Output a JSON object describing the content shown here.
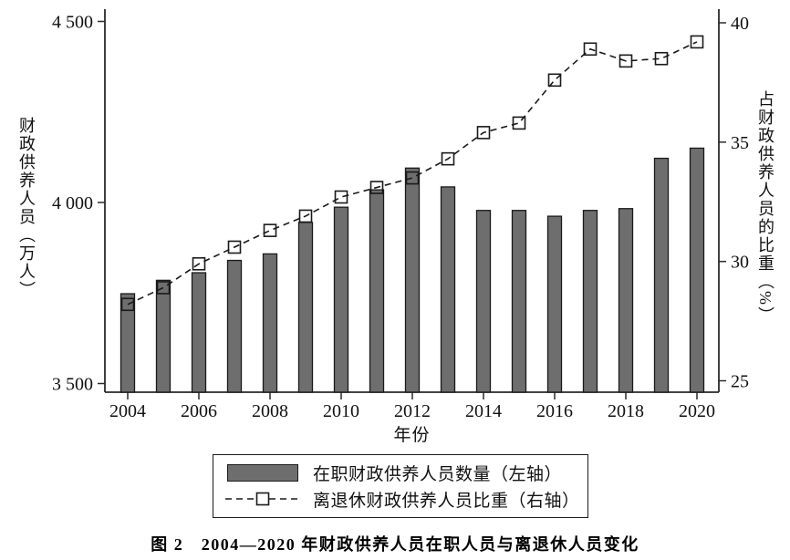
{
  "figure_caption": "图 2　2004—2020 年财政供养人员在职人员与离退休人员变化",
  "chart_data": {
    "type": "bar+line combo",
    "x": [
      2004,
      2005,
      2006,
      2007,
      2008,
      2009,
      2010,
      2011,
      2012,
      2013,
      2014,
      2015,
      2016,
      2017,
      2018,
      2019,
      2020
    ],
    "series": [
      {
        "name": "在职财政供养人员数量（左轴）",
        "type": "bar",
        "axis": "left",
        "values": [
          3748,
          3785,
          3806,
          3840,
          3858,
          3945,
          3987,
          4035,
          4095,
          4043,
          3978,
          3978,
          3962,
          3978,
          3983,
          4122,
          4150
        ]
      },
      {
        "name": "离退休财政供养人员比重（右轴）",
        "type": "line",
        "axis": "right",
        "line_style": "dashed",
        "marker": "open-square",
        "values": [
          28.2,
          28.9,
          29.9,
          30.6,
          31.3,
          31.9,
          32.7,
          33.1,
          33.5,
          34.3,
          35.4,
          35.8,
          37.6,
          38.9,
          38.4,
          38.5,
          39.2
        ]
      }
    ],
    "xlabel": "年份",
    "x_ticks": [
      2004,
      2006,
      2008,
      2010,
      2012,
      2014,
      2016,
      2018,
      2020
    ],
    "left_axis": {
      "label": "财政供养人员（万人）",
      "tick_labels": [
        "3 500",
        "4 000",
        "4 500"
      ],
      "tick_values": [
        3500,
        4000,
        4500
      ],
      "range": [
        3500,
        4500
      ]
    },
    "right_axis": {
      "label": "占财政供养人员的比重（%）",
      "tick_labels": [
        "25",
        "30",
        "35",
        "40"
      ],
      "tick_values": [
        25,
        30,
        35,
        40
      ],
      "range": [
        25,
        40
      ]
    },
    "legend": {
      "position": "bottom-center",
      "border": true,
      "entries": [
        {
          "swatch": "bar",
          "label": "在职财政供养人员数量（左轴）"
        },
        {
          "swatch": "dashed-line-open-square",
          "label": "离退休财政供养人员比重（右轴）"
        }
      ]
    },
    "grid": "off",
    "colors": {
      "bar_fill": "#6e6e6e",
      "bar_stroke": "#1a1a1a",
      "line_color": "#1a1a1a",
      "marker_fill": "none",
      "axis_color": "#2a2a2a",
      "text_color": "#111111",
      "background": "#ffffff"
    }
  }
}
